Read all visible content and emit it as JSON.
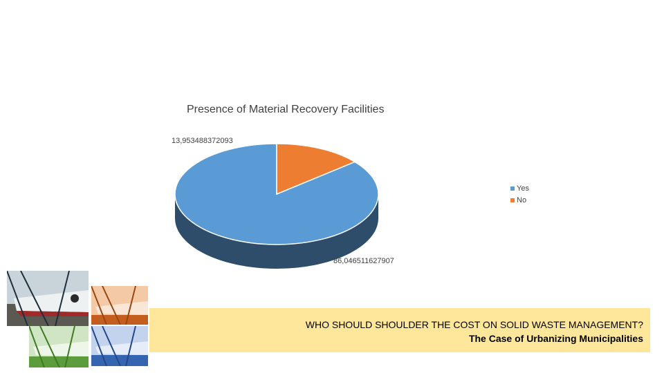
{
  "chart_data": {
    "type": "pie",
    "style": "3d",
    "title": "Presence of Material Recovery Facilities",
    "categories": [
      "Yes",
      "No"
    ],
    "values": [
      86.046511627907,
      13.953488372093
    ],
    "data_labels": [
      "86,046511627907",
      "13,953488372093"
    ],
    "colors": [
      "#5b9bd5",
      "#ed7d31"
    ],
    "side_colors": [
      "#2e4d6b",
      "#8a4a1e"
    ],
    "legend_position": "right"
  },
  "banner": {
    "title": "WHO SHOULD SHOULDER THE COST ON SOLID WASTE MANAGEMENT?",
    "subtitle": "The Case of Urbanizing Municipalities"
  },
  "photos": [
    {
      "name": "photo-original-icon",
      "tint": "#6c7a86"
    },
    {
      "name": "photo-orange-tint-icon",
      "tint": "#d96f2a"
    },
    {
      "name": "photo-green-tint-icon",
      "tint": "#6aa84f"
    },
    {
      "name": "photo-blue-tint-icon",
      "tint": "#3d6db5"
    }
  ]
}
